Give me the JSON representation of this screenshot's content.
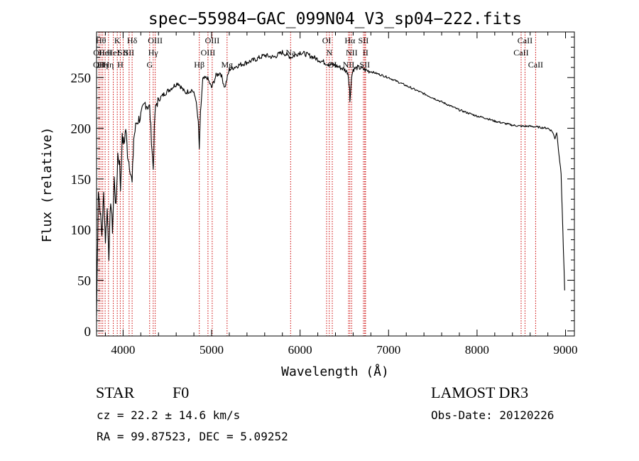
{
  "chart_data": {
    "type": "line",
    "title": "spec−55984−GAC_099N04_V3_sp04−222.fits",
    "xlabel": "Wavelength (Å)",
    "ylabel": "Flux (relative)",
    "xlim": [
      3700,
      9100
    ],
    "ylim": [
      -5,
      295
    ],
    "xticks": [
      "4000",
      "5000",
      "6000",
      "7000",
      "8000",
      "9000"
    ],
    "yticks": [
      "0",
      "50",
      "100",
      "150",
      "200",
      "250"
    ],
    "xtick_values": [
      4000,
      5000,
      6000,
      7000,
      8000,
      9000
    ],
    "ytick_values": [
      0,
      50,
      100,
      150,
      200,
      250
    ],
    "line_color": "#000000",
    "marker_color": "#cc0000",
    "spectrum": {
      "x": [
        3700,
        3720,
        3740,
        3760,
        3780,
        3800,
        3820,
        3840,
        3860,
        3880,
        3900,
        3920,
        3940,
        3960,
        3970,
        3990,
        4010,
        4030,
        4050,
        4080,
        4102,
        4120,
        4150,
        4200,
        4250,
        4300,
        4340,
        4360,
        4380,
        4420,
        4480,
        4550,
        4620,
        4700,
        4780,
        4820,
        4850,
        4861,
        4875,
        4900,
        4950,
        5000,
        5050,
        5100,
        5150,
        5200,
        5250,
        5300,
        5400,
        5500,
        5600,
        5700,
        5800,
        5900,
        6000,
        6100,
        6200,
        6300,
        6400,
        6500,
        6540,
        6560,
        6563,
        6570,
        6580,
        6600,
        6650,
        6700,
        6750,
        6800,
        6900,
        7000,
        7100,
        7200,
        7300,
        7400,
        7500,
        7600,
        7700,
        7800,
        7900,
        8000,
        8100,
        8200,
        8300,
        8400,
        8500,
        8600,
        8700,
        8800,
        8850,
        8880,
        8900,
        8950,
        8990
      ],
      "y": [
        15,
        140,
        120,
        95,
        135,
        90,
        120,
        75,
        130,
        100,
        150,
        120,
        175,
        165,
        140,
        190,
        185,
        200,
        175,
        160,
        145,
        190,
        205,
        212,
        225,
        220,
        160,
        215,
        225,
        230,
        235,
        240,
        245,
        235,
        238,
        230,
        205,
        180,
        215,
        248,
        250,
        240,
        252,
        255,
        240,
        258,
        260,
        262,
        265,
        268,
        272,
        270,
        275,
        270,
        275,
        272,
        268,
        264,
        262,
        258,
        255,
        240,
        225,
        235,
        250,
        258,
        260,
        259,
        257,
        256,
        253,
        250,
        246,
        242,
        238,
        234,
        230,
        226,
        222,
        218,
        215,
        212,
        210,
        207,
        205,
        203,
        202,
        202,
        201,
        200,
        197,
        190,
        196,
        155,
        40
      ]
    },
    "lines": [
      {
        "w": 3727,
        "label": "OII",
        "row": 2
      },
      {
        "w": 3729,
        "label": "OII",
        "row": 1
      },
      {
        "w": 3750,
        "label": "Hθ",
        "row": 0
      },
      {
        "w": 3770,
        "label": "Hη",
        "row": 2
      },
      {
        "w": 3797,
        "label": "HeI",
        "row": 1
      },
      {
        "w": 3835,
        "label": "Hη",
        "row": 2
      },
      {
        "w": 3889,
        "label": "HeI",
        "row": 1
      },
      {
        "w": 3934,
        "label": "K",
        "row": 0
      },
      {
        "w": 3968,
        "label": "H",
        "row": 2
      },
      {
        "w": 4000,
        "label": "SII",
        "row": 1
      },
      {
        "w": 4102,
        "label": "Hδ",
        "row": 0
      },
      {
        "w": 4068,
        "label": "SII",
        "row": 1
      },
      {
        "w": 4300,
        "label": "G",
        "row": 2
      },
      {
        "w": 4340,
        "label": "Hγ",
        "row": 1
      },
      {
        "w": 4363,
        "label": "OIII",
        "row": 0
      },
      {
        "w": 4861,
        "label": "Hβ",
        "row": 2
      },
      {
        "w": 4959,
        "label": "OIII",
        "row": 1
      },
      {
        "w": 5007,
        "label": "OIII",
        "row": 0
      },
      {
        "w": 5175,
        "label": "Mg",
        "row": 2
      },
      {
        "w": 5893,
        "label": "Na",
        "row": 1
      },
      {
        "w": 6300,
        "label": "OI",
        "row": 0
      },
      {
        "w": 6330,
        "label": "N",
        "row": 1
      },
      {
        "w": 6364,
        "label": "OI",
        "row": 2
      },
      {
        "w": 6548,
        "label": "NII",
        "row": 2
      },
      {
        "w": 6563,
        "label": "Hα",
        "row": 0
      },
      {
        "w": 6583,
        "label": "NII",
        "row": 1
      },
      {
        "w": 6716,
        "label": "SII",
        "row": 0
      },
      {
        "w": 6731,
        "label": "SII",
        "row": 2
      },
      {
        "w": 6740,
        "label": "II",
        "row": 1
      },
      {
        "w": 8498,
        "label": "CaII",
        "row": 1
      },
      {
        "w": 8542,
        "label": "CaII",
        "row": 0
      },
      {
        "w": 8662,
        "label": "CaII",
        "row": 2
      }
    ]
  },
  "info": {
    "object_class": "STAR",
    "subclass": "F0",
    "survey": "LAMOST DR3",
    "cz": "cz = 22.2 ± 14.6 km/s",
    "obs_date": "Obs-Date: 20120226",
    "coords": "RA =  99.87523, DEC =   5.09252"
  }
}
